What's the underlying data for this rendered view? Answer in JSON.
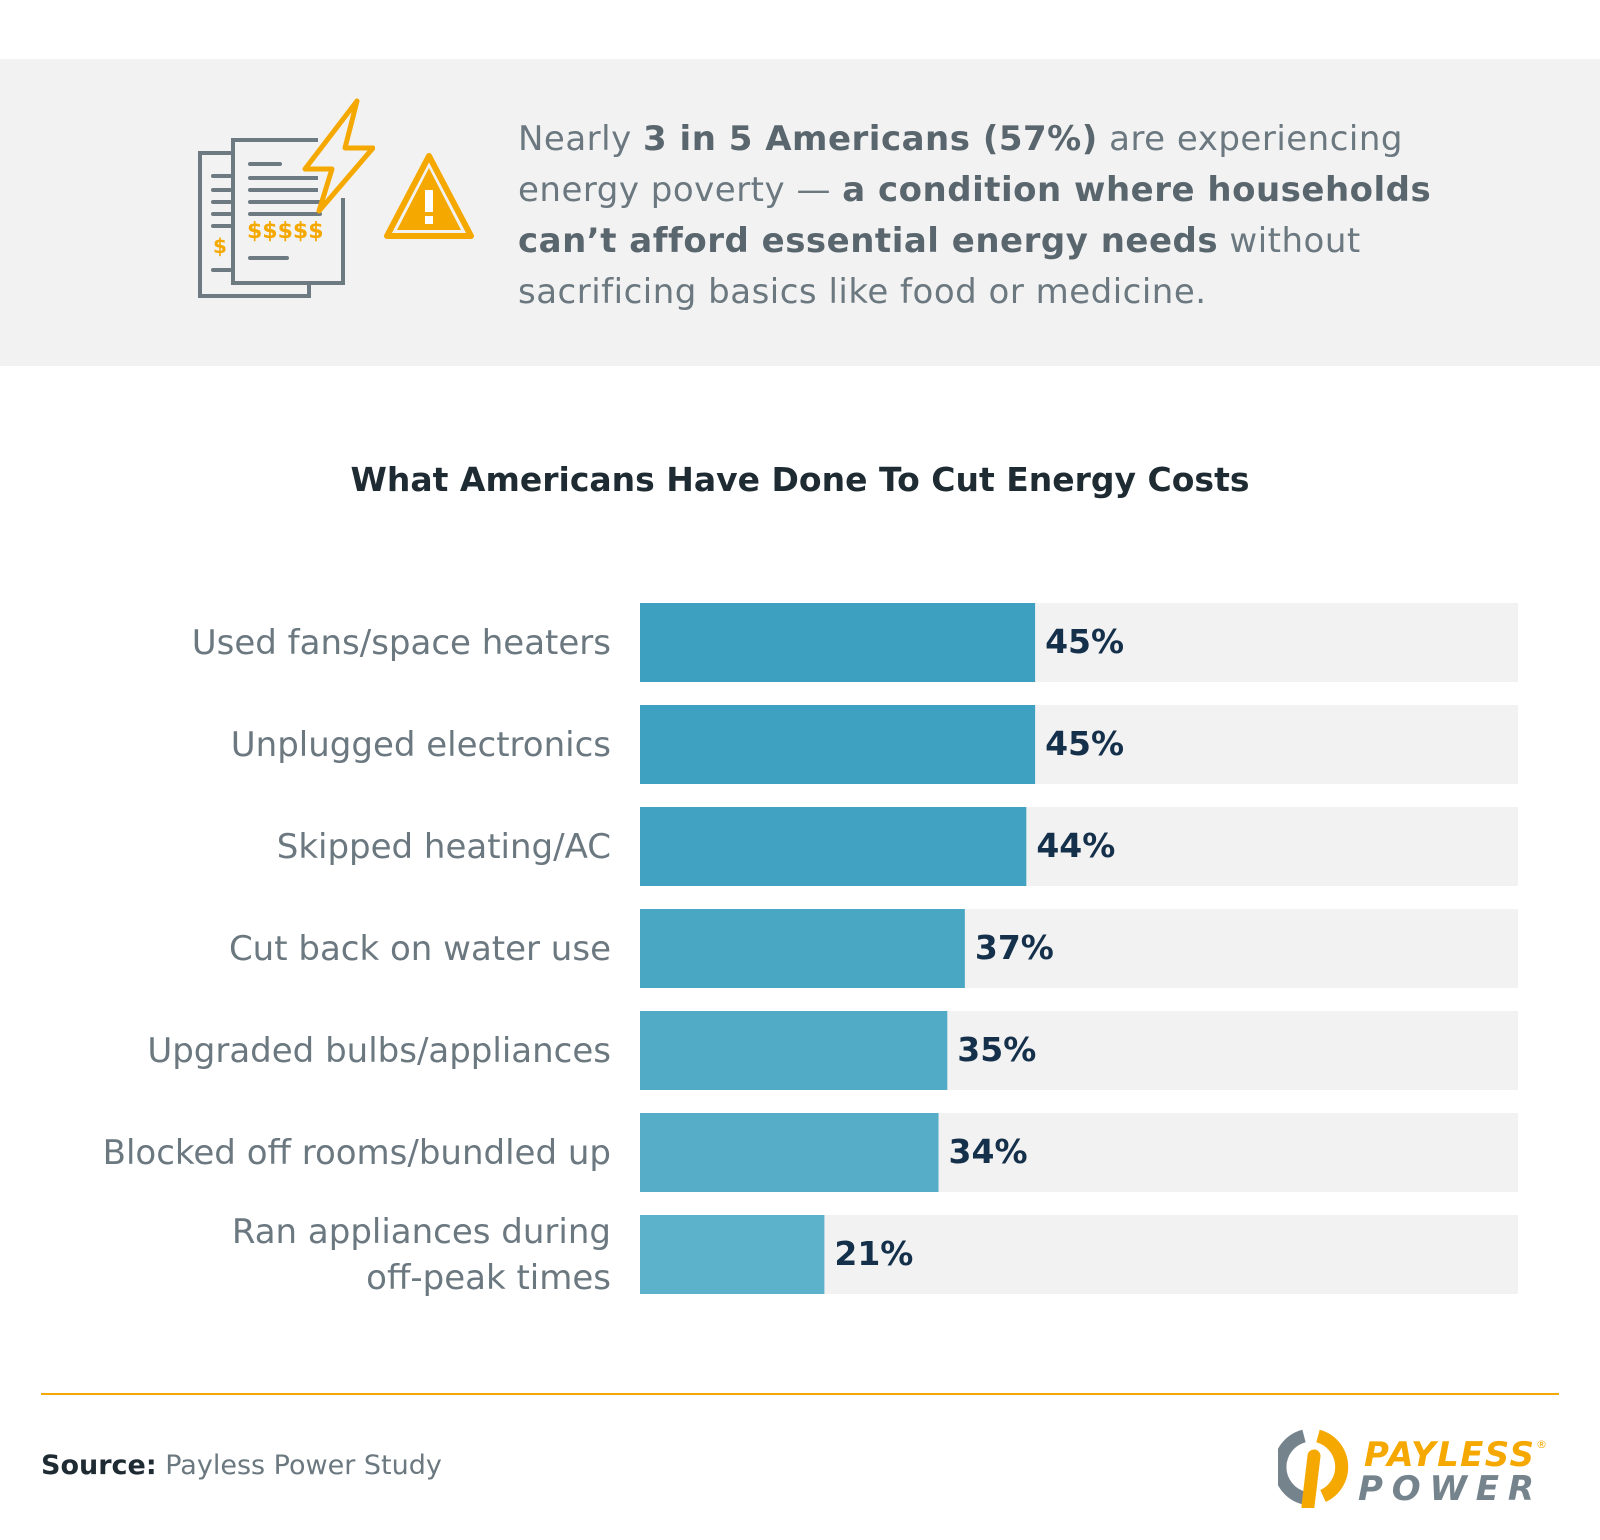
{
  "intro": {
    "segments": [
      {
        "text": "Nearly ",
        "bold": false
      },
      {
        "text": "3 in 5 Americans (57%)",
        "bold": true
      },
      {
        "text": " are experiencing energy poverty — ",
        "bold": false
      },
      {
        "text": "a condition where households can’t afford essential energy needs",
        "bold": true
      },
      {
        "text": " without sacrificing basics like food or medicine.",
        "bold": false
      }
    ],
    "icons": [
      "bills-lightning-icon",
      "warning-icon"
    ],
    "accent_color": "#f5a800"
  },
  "chart_data": {
    "type": "bar",
    "orientation": "horizontal",
    "title": "What Americans Have Done To Cut Energy Costs",
    "categories": [
      "Used fans/space heaters",
      "Unplugged electronics",
      "Skipped heating/AC",
      "Cut back on water use",
      "Upgraded bulbs/appliances",
      "Blocked off rooms/bundled up",
      "Ran appliances during off-peak times"
    ],
    "values": [
      45,
      45,
      44,
      37,
      35,
      34,
      21
    ],
    "value_labels": [
      "45%",
      "45%",
      "44%",
      "37%",
      "35%",
      "34%",
      "21%"
    ],
    "xlim": [
      0,
      100
    ],
    "grid": false,
    "bar_colors": [
      "#3da0c0",
      "#3fa1c1",
      "#41a2c2",
      "#4aa7c4",
      "#51aac6",
      "#55adc8",
      "#5cb1cb"
    ],
    "track_color": "#f2f2f2"
  },
  "footer": {
    "source_label": "Source:",
    "source_text": " Payless Power Study",
    "logo_text": [
      "PAYLESS",
      "POWER"
    ]
  }
}
